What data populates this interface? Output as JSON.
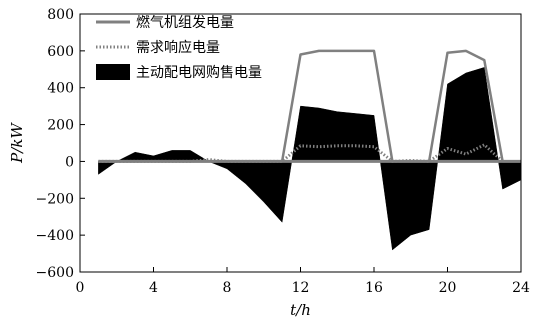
{
  "chart_data": {
    "type": "line",
    "title": "",
    "xlabel": "t/h",
    "ylabel": "P/kW",
    "xlim": [
      0,
      24
    ],
    "ylim": [
      -600,
      800
    ],
    "xticks": [
      0,
      4,
      8,
      12,
      16,
      20,
      24
    ],
    "yticks": [
      -600,
      -400,
      -200,
      0,
      200,
      400,
      600,
      800
    ],
    "grid": false,
    "legend_position": "top-right",
    "series": [
      {
        "name": "燃气机组发电量",
        "style": "solid-line",
        "color": "#808080",
        "x": [
          1,
          11,
          12,
          13,
          14,
          15,
          16,
          17,
          19,
          20,
          21,
          22,
          23,
          24
        ],
        "y": [
          0,
          0,
          580,
          600,
          600,
          600,
          600,
          0,
          0,
          590,
          600,
          550,
          0,
          0
        ]
      },
      {
        "name": "需求响应电量",
        "style": "dotted-line",
        "color": "#808080",
        "x": [
          1,
          6,
          7,
          8,
          11,
          12,
          13,
          14,
          15,
          16,
          17,
          18,
          19,
          20,
          21,
          22,
          23
        ],
        "y": [
          0,
          0,
          10,
          0,
          0,
          85,
          80,
          85,
          85,
          80,
          0,
          5,
          0,
          70,
          40,
          90,
          0
        ]
      },
      {
        "name": "主动配电网购售电量",
        "style": "filled-area",
        "color": "#000000",
        "x": [
          1,
          2,
          3,
          4,
          5,
          6,
          7,
          8,
          9,
          10,
          11,
          12,
          13,
          14,
          15,
          16,
          17,
          18,
          19,
          20,
          21,
          22,
          23,
          24
        ],
        "y": [
          -70,
          0,
          50,
          30,
          60,
          60,
          0,
          -40,
          -120,
          -220,
          -330,
          300,
          290,
          270,
          260,
          250,
          -480,
          -400,
          -370,
          420,
          480,
          510,
          -150,
          -100
        ]
      }
    ]
  }
}
